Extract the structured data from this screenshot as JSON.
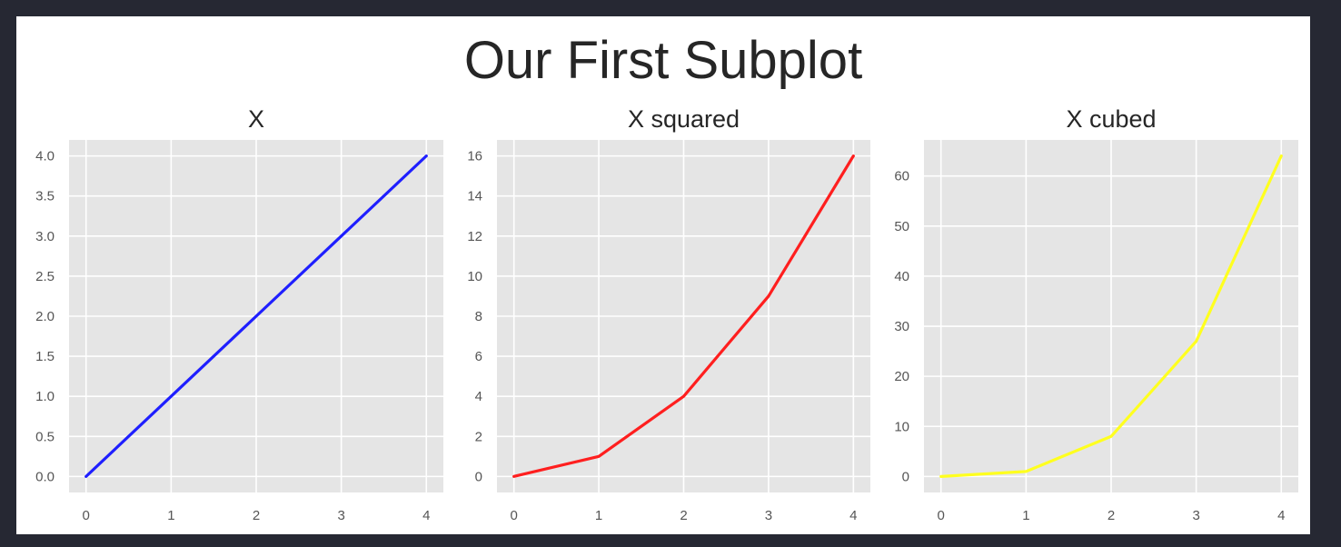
{
  "figure": {
    "title": "Our First Subplot"
  },
  "chart_data": [
    {
      "type": "line",
      "title": "X",
      "x": [
        0,
        1,
        2,
        3,
        4
      ],
      "series": [
        {
          "values": [
            0,
            1,
            2,
            3,
            4
          ],
          "color": "#1f1fff"
        }
      ],
      "xlim": [
        -0.2,
        4.2
      ],
      "ylim": [
        -0.2,
        4.2
      ],
      "xticks": [
        0,
        1,
        2,
        3,
        4
      ],
      "yticks": [
        0.0,
        0.5,
        1.0,
        1.5,
        2.0,
        2.5,
        3.0,
        3.5,
        4.0
      ],
      "ytick_labels": [
        "0.0",
        "0.5",
        "1.0",
        "1.5",
        "2.0",
        "2.5",
        "3.0",
        "3.5",
        "4.0"
      ],
      "xlabel": "",
      "ylabel": "",
      "grid": true,
      "background": "#e5e5e5"
    },
    {
      "type": "line",
      "title": "X squared",
      "x": [
        0,
        1,
        2,
        3,
        4
      ],
      "series": [
        {
          "values": [
            0,
            1,
            4,
            9,
            16
          ],
          "color": "#ff1f1f"
        }
      ],
      "xlim": [
        -0.2,
        4.2
      ],
      "ylim": [
        -0.8,
        16.8
      ],
      "xticks": [
        0,
        1,
        2,
        3,
        4
      ],
      "yticks": [
        0,
        2,
        4,
        6,
        8,
        10,
        12,
        14,
        16
      ],
      "ytick_labels": [
        "0",
        "2",
        "4",
        "6",
        "8",
        "10",
        "12",
        "14",
        "16"
      ],
      "xlabel": "",
      "ylabel": "",
      "grid": true,
      "background": "#e5e5e5"
    },
    {
      "type": "line",
      "title": "X cubed",
      "x": [
        0,
        1,
        2,
        3,
        4
      ],
      "series": [
        {
          "values": [
            0,
            1,
            8,
            27,
            64
          ],
          "color": "#ffff1f"
        }
      ],
      "xlim": [
        -0.2,
        4.2
      ],
      "ylim": [
        -3.2,
        67.2
      ],
      "xticks": [
        0,
        1,
        2,
        3,
        4
      ],
      "yticks": [
        0,
        10,
        20,
        30,
        40,
        50,
        60
      ],
      "ytick_labels": [
        "0",
        "10",
        "20",
        "30",
        "40",
        "50",
        "60"
      ],
      "xlabel": "",
      "ylabel": "",
      "grid": true,
      "background": "#e5e5e5"
    }
  ]
}
